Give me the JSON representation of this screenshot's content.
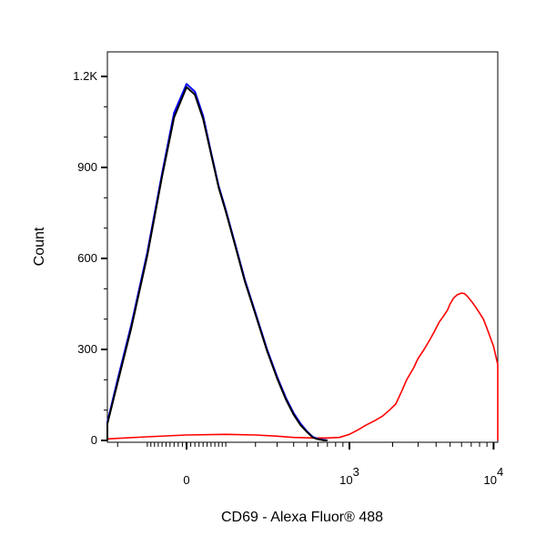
{
  "chart_data": {
    "type": "line",
    "title": "",
    "xlabel": "CD69 - Alexa Fluor® 488",
    "ylabel": "Count",
    "x_scale": "biexponential",
    "x_ticks": [
      {
        "value": 0,
        "base": "0",
        "exp": ""
      },
      {
        "value": 1000,
        "base": "10",
        "exp": "3"
      },
      {
        "value": 10000,
        "base": "10",
        "exp": "4"
      }
    ],
    "y_ticks": [
      {
        "value": 0,
        "label": "0"
      },
      {
        "value": 300,
        "label": "300"
      },
      {
        "value": 600,
        "label": "600"
      },
      {
        "value": 900,
        "label": "900"
      },
      {
        "value": 1200,
        "label": "1.2K"
      }
    ],
    "ylim": [
      0,
      1200
    ],
    "grid": false,
    "legend": "none",
    "series": [
      {
        "color": "#ff0000",
        "x": [
          -600,
          -300,
          -100,
          0,
          100,
          200,
          300,
          400,
          550,
          700,
          850,
          1000,
          1150,
          1300,
          1500,
          1700,
          1900,
          2100,
          2300,
          2500,
          2800,
          3000,
          3300,
          3600,
          3900,
          4200,
          4500,
          4800,
          5000,
          5300,
          5600,
          6000,
          6300,
          6600,
          7000,
          7500,
          8000,
          8500,
          9000,
          10000,
          11000,
          12000,
          13000,
          14000,
          15000,
          16000,
          17000,
          18000,
          20000
        ],
        "y": [
          0,
          5,
          12,
          18,
          20,
          18,
          14,
          10,
          8,
          8,
          10,
          20,
          35,
          50,
          65,
          80,
          100,
          120,
          160,
          200,
          240,
          270,
          300,
          330,
          360,
          390,
          410,
          430,
          450,
          470,
          480,
          486,
          484,
          475,
          460,
          440,
          420,
          400,
          370,
          310,
          250,
          190,
          120,
          80,
          40,
          20,
          10,
          5,
          0
        ]
      },
      {
        "color": "#0000ff",
        "x": [
          -600,
          -500,
          -400,
          -300,
          -200,
          -150,
          -100,
          -60,
          -30,
          0,
          20,
          40,
          60,
          80,
          100,
          130,
          160,
          200,
          250,
          300,
          350,
          400,
          450,
          500,
          550,
          600,
          650,
          700
        ],
        "y": [
          0,
          5,
          20,
          60,
          200,
          380,
          620,
          880,
          1080,
          1175,
          1150,
          1070,
          950,
          840,
          760,
          640,
          530,
          420,
          300,
          210,
          140,
          90,
          55,
          30,
          12,
          5,
          2,
          0
        ]
      },
      {
        "color": "#000000",
        "x": [
          -600,
          -500,
          -400,
          -300,
          -200,
          -150,
          -100,
          -60,
          -30,
          0,
          20,
          40,
          60,
          80,
          100,
          130,
          160,
          200,
          250,
          300,
          350,
          400,
          450,
          500,
          550,
          600,
          650,
          700
        ],
        "y": [
          0,
          5,
          18,
          55,
          190,
          370,
          610,
          870,
          1065,
          1165,
          1140,
          1060,
          945,
          835,
          755,
          635,
          525,
          415,
          295,
          205,
          135,
          85,
          50,
          28,
          10,
          4,
          1,
          0
        ]
      }
    ]
  }
}
